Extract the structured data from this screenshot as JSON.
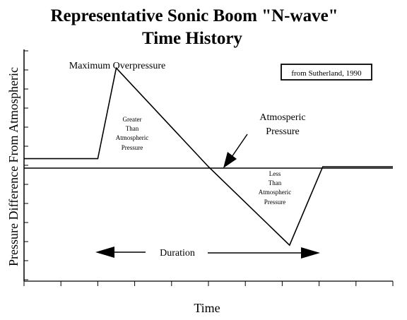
{
  "chart_data": {
    "type": "line",
    "title": "Representative Sonic Boom \"N-wave\"",
    "subtitle": "Time History",
    "xlabel": "Time",
    "ylabel": "Pressure Difference From Atmospheric",
    "x_ticks": 11,
    "y_ticks": 13,
    "grid": false,
    "series": [
      {
        "x": [
          0,
          2.0,
          2.5,
          5.0,
          7.2,
          8.1,
          10.0
        ],
        "y": [
          0.4,
          0.4,
          4.9,
          0.0,
          -3.9,
          0.0,
          0.0
        ]
      }
    ],
    "baseline": {
      "x": [
        0,
        10.0
      ],
      "y": [
        0.0,
        0.0
      ]
    },
    "annotations": {
      "max_overpressure": "Maximum Overpressure",
      "greater": [
        "Greater",
        "Than",
        "Atmospheric",
        "Pressure"
      ],
      "atmospheric": [
        "Atmosperic",
        "Pressure"
      ],
      "less": [
        "Less",
        "Than",
        "Atmospheric",
        "Pressure"
      ],
      "duration": "Duration",
      "source": "from Sutherland, 1990"
    }
  },
  "colors": {
    "ink": "#000000",
    "background": "#ffffff"
  }
}
